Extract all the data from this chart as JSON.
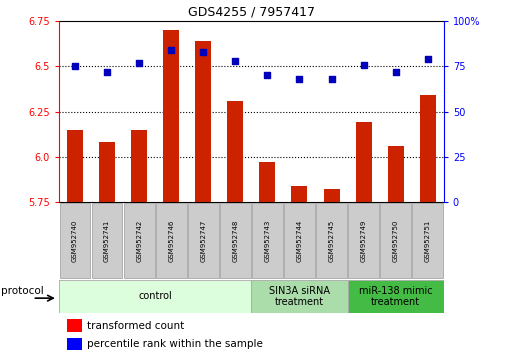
{
  "title": "GDS4255 / 7957417",
  "samples": [
    "GSM952740",
    "GSM952741",
    "GSM952742",
    "GSM952746",
    "GSM952747",
    "GSM952748",
    "GSM952743",
    "GSM952744",
    "GSM952745",
    "GSM952749",
    "GSM952750",
    "GSM952751"
  ],
  "transformed_count": [
    6.15,
    6.08,
    6.15,
    6.7,
    6.64,
    6.31,
    5.97,
    5.84,
    5.82,
    6.19,
    6.06,
    6.34
  ],
  "percentile_rank": [
    75,
    72,
    77,
    84,
    83,
    78,
    70,
    68,
    68,
    76,
    72,
    79
  ],
  "groups": [
    {
      "label": "control",
      "start": 0,
      "end": 6,
      "color": "#ddfedd",
      "edge_color": "#aaaaaa"
    },
    {
      "label": "SIN3A siRNA\ntreatment",
      "start": 6,
      "end": 9,
      "color": "#aaddaa",
      "edge_color": "#aaaaaa"
    },
    {
      "label": "miR-138 mimic\ntreatment",
      "start": 9,
      "end": 12,
      "color": "#44bb44",
      "edge_color": "#aaaaaa"
    }
  ],
  "ylim_left": [
    5.75,
    6.75
  ],
  "ylim_right": [
    0,
    100
  ],
  "yticks_left": [
    5.75,
    6.0,
    6.25,
    6.5,
    6.75
  ],
  "yticks_right": [
    0,
    25,
    50,
    75,
    100
  ],
  "bar_color": "#cc2200",
  "dot_color": "#0000bb",
  "bar_width": 0.5,
  "background_color": "#ffffff",
  "plot_bg": "#ffffff",
  "sample_box_color": "#cccccc",
  "sample_box_edge": "#999999"
}
